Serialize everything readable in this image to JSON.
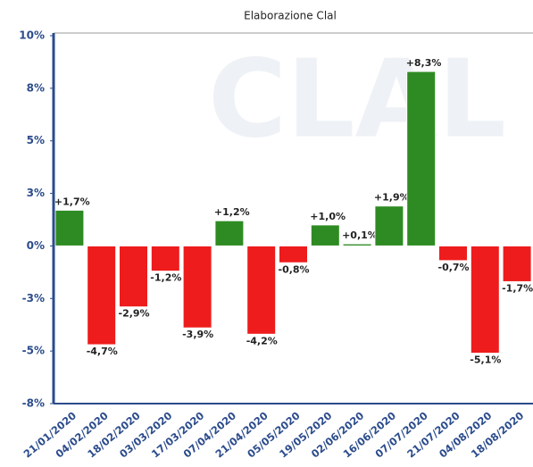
{
  "chart_data": {
    "type": "bar",
    "title": "Elaborazione Clal",
    "watermark": "CLAL",
    "categories": [
      "21/01/2020",
      "04/02/2020",
      "18/02/2020",
      "03/03/2020",
      "17/03/2020",
      "07/04/2020",
      "21/04/2020",
      "05/05/2020",
      "19/05/2020",
      "02/06/2020",
      "16/06/2020",
      "07/07/2020",
      "21/07/2020",
      "04/08/2020",
      "18/08/2020"
    ],
    "values": [
      1.7,
      -4.7,
      -2.9,
      -1.2,
      -3.9,
      1.2,
      -4.2,
      -0.8,
      1.0,
      0.1,
      1.9,
      8.3,
      -0.7,
      -5.1,
      -1.7
    ],
    "value_labels": [
      "+1,7%",
      "-4,7%",
      "-2,9%",
      "-1,2%",
      "-3,9%",
      "+1,2%",
      "-4,2%",
      "-0,8%",
      "+1,0%",
      "+0,1%",
      "+1,9%",
      "+8,3%",
      "-0,7%",
      "-5,1%",
      "-1,7%"
    ],
    "positive_color": "#2e8b23",
    "negative_color": "#ee1c1c",
    "ylim": [
      -7.5,
      10
    ],
    "yticks": [
      {
        "value": 10,
        "label": "10%"
      },
      {
        "value": 7.5,
        "label": "8%"
      },
      {
        "value": 5,
        "label": "5%"
      },
      {
        "value": 2.5,
        "label": "3%"
      },
      {
        "value": 0,
        "label": "0%"
      },
      {
        "value": -2.5,
        "label": "-3%"
      },
      {
        "value": -5,
        "label": "-5%"
      },
      {
        "value": -7.5,
        "label": "-8%"
      }
    ]
  }
}
